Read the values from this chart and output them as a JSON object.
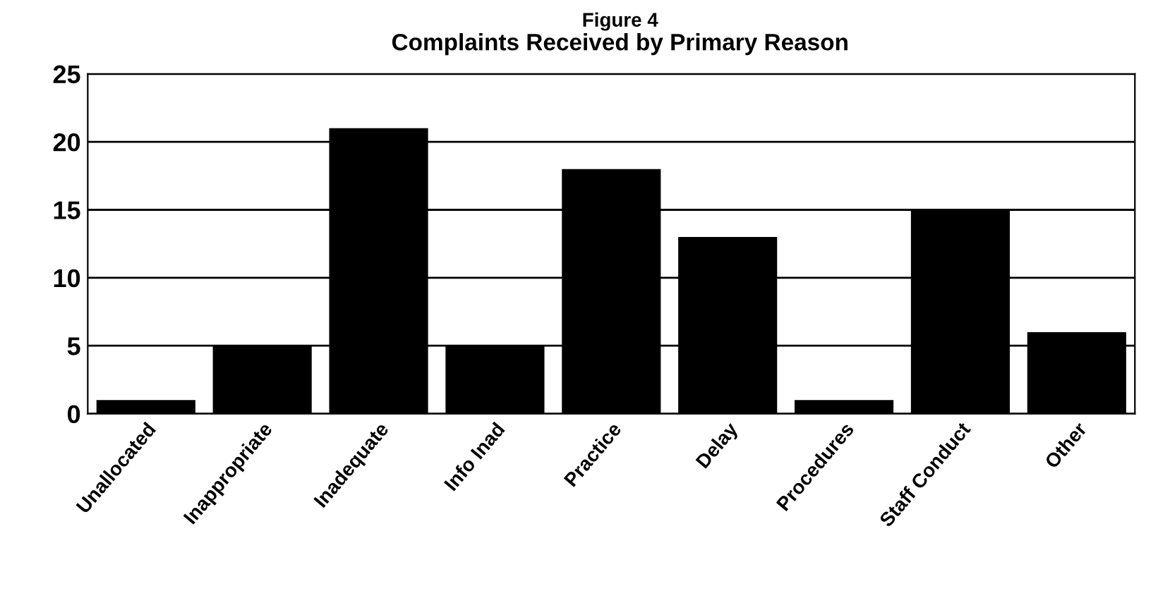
{
  "chart_data": {
    "type": "bar",
    "title": "Figure 4",
    "subtitle": "Complaints Received by Primary Reason",
    "categories": [
      "Unallocated",
      "Inappropriate",
      "Inadequate",
      "Info Inad",
      "Practice",
      "Delay",
      "Procedures",
      "Staff Conduct",
      "Other"
    ],
    "values": [
      1,
      5,
      21,
      5,
      18,
      13,
      1,
      15,
      6
    ],
    "color": "#000000",
    "ylim": [
      0,
      25
    ],
    "yticks": [
      0,
      5,
      10,
      15,
      20,
      25
    ],
    "grid": "y",
    "legend": false
  }
}
